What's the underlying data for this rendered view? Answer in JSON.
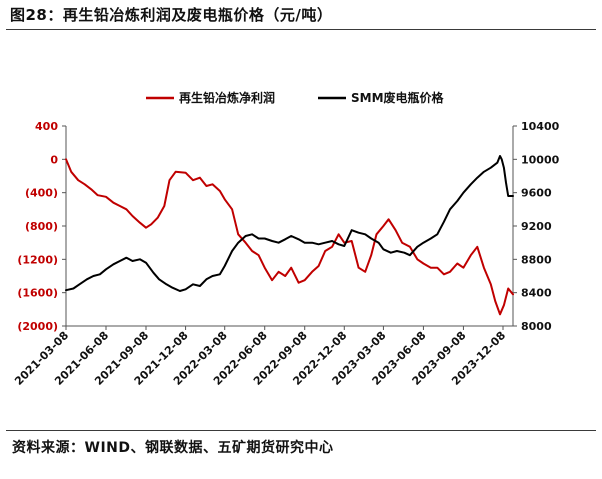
{
  "figure": {
    "title": "图28：再生铅冶炼利润及废电瓶价格（元/吨）",
    "source": "资料来源：WIND、钢联数据、五矿期货研究中心"
  },
  "chart_data": {
    "type": "line",
    "title": "",
    "xlabel": "",
    "ylabel_left": "",
    "ylabel_right": "",
    "x_ticks": [
      "2021-03-08",
      "2021-06-08",
      "2021-09-08",
      "2021-12-08",
      "2022-03-08",
      "2022-06-08",
      "2022-09-08",
      "2022-12-08",
      "2023-03-08",
      "2023-06-08",
      "2023-09-08",
      "2023-12-08"
    ],
    "x_range": [
      "2021-03-08",
      "2023-12-31"
    ],
    "y_left": {
      "min": -2000,
      "max": 400,
      "ticks": [
        400,
        0,
        -400,
        -800,
        -1200,
        -1600,
        -2000
      ],
      "tick_labels": [
        "400",
        "0",
        "(400)",
        "(800)",
        "(1200)",
        "(1600)",
        "(2000)"
      ],
      "color": "#c00000"
    },
    "y_right": {
      "min": 8000,
      "max": 10400,
      "ticks": [
        10400,
        10000,
        9600,
        9200,
        8800,
        8400,
        8000
      ],
      "tick_labels": [
        "10400",
        "10000",
        "9600",
        "9200",
        "8800",
        "8400",
        "8000"
      ]
    },
    "legend": {
      "position": "top-center"
    },
    "grid": false,
    "series": [
      {
        "name": "再生铅冶炼净利润",
        "axis": "left",
        "color": "#c00000",
        "points": [
          [
            "2021-03-08",
            0
          ],
          [
            "2021-03-20",
            -150
          ],
          [
            "2021-04-05",
            -250
          ],
          [
            "2021-04-20",
            -300
          ],
          [
            "2021-05-05",
            -360
          ],
          [
            "2021-05-20",
            -430
          ],
          [
            "2021-06-08",
            -450
          ],
          [
            "2021-06-25",
            -520
          ],
          [
            "2021-07-10",
            -560
          ],
          [
            "2021-07-25",
            -600
          ],
          [
            "2021-08-08",
            -680
          ],
          [
            "2021-08-25",
            -760
          ],
          [
            "2021-09-08",
            -820
          ],
          [
            "2021-09-20",
            -780
          ],
          [
            "2021-10-05",
            -700
          ],
          [
            "2021-10-20",
            -560
          ],
          [
            "2021-11-01",
            -250
          ],
          [
            "2021-11-15",
            -150
          ],
          [
            "2021-12-08",
            -160
          ],
          [
            "2021-12-25",
            -250
          ],
          [
            "2022-01-10",
            -220
          ],
          [
            "2022-01-25",
            -320
          ],
          [
            "2022-02-08",
            -300
          ],
          [
            "2022-02-25",
            -380
          ],
          [
            "2022-03-08",
            -480
          ],
          [
            "2022-03-25",
            -600
          ],
          [
            "2022-04-08",
            -900
          ],
          [
            "2022-04-25",
            -1000
          ],
          [
            "2022-05-10",
            -1100
          ],
          [
            "2022-05-25",
            -1150
          ],
          [
            "2022-06-08",
            -1300
          ],
          [
            "2022-06-25",
            -1450
          ],
          [
            "2022-07-10",
            -1350
          ],
          [
            "2022-07-25",
            -1400
          ],
          [
            "2022-08-08",
            -1300
          ],
          [
            "2022-08-25",
            -1480
          ],
          [
            "2022-09-08",
            -1450
          ],
          [
            "2022-09-25",
            -1350
          ],
          [
            "2022-10-10",
            -1280
          ],
          [
            "2022-10-25",
            -1100
          ],
          [
            "2022-11-10",
            -1050
          ],
          [
            "2022-11-25",
            -900
          ],
          [
            "2022-12-08",
            -1000
          ],
          [
            "2022-12-25",
            -980
          ],
          [
            "2023-01-10",
            -1300
          ],
          [
            "2023-01-25",
            -1350
          ],
          [
            "2023-02-08",
            -1150
          ],
          [
            "2023-02-20",
            -900
          ],
          [
            "2023-03-08",
            -800
          ],
          [
            "2023-03-20",
            -720
          ],
          [
            "2023-04-05",
            -850
          ],
          [
            "2023-04-20",
            -1000
          ],
          [
            "2023-05-08",
            -1050
          ],
          [
            "2023-05-25",
            -1200
          ],
          [
            "2023-06-08",
            -1250
          ],
          [
            "2023-06-25",
            -1300
          ],
          [
            "2023-07-10",
            -1300
          ],
          [
            "2023-07-25",
            -1380
          ],
          [
            "2023-08-08",
            -1350
          ],
          [
            "2023-08-25",
            -1250
          ],
          [
            "2023-09-08",
            -1300
          ],
          [
            "2023-09-25",
            -1150
          ],
          [
            "2023-10-10",
            -1050
          ],
          [
            "2023-10-25",
            -1300
          ],
          [
            "2023-11-10",
            -1500
          ],
          [
            "2023-11-20",
            -1700
          ],
          [
            "2023-12-01",
            -1860
          ],
          [
            "2023-12-10",
            -1750
          ],
          [
            "2023-12-20",
            -1550
          ],
          [
            "2023-12-31",
            -1620
          ]
        ]
      },
      {
        "name": "SMM废电瓶价格",
        "axis": "right",
        "color": "#000000",
        "points": [
          [
            "2021-03-08",
            8430
          ],
          [
            "2021-03-25",
            8450
          ],
          [
            "2021-04-08",
            8500
          ],
          [
            "2021-04-25",
            8560
          ],
          [
            "2021-05-10",
            8600
          ],
          [
            "2021-05-25",
            8620
          ],
          [
            "2021-06-08",
            8680
          ],
          [
            "2021-06-25",
            8740
          ],
          [
            "2021-07-10",
            8780
          ],
          [
            "2021-07-25",
            8820
          ],
          [
            "2021-08-08",
            8780
          ],
          [
            "2021-08-25",
            8800
          ],
          [
            "2021-09-08",
            8760
          ],
          [
            "2021-09-25",
            8640
          ],
          [
            "2021-10-08",
            8560
          ],
          [
            "2021-10-25",
            8500
          ],
          [
            "2021-11-08",
            8460
          ],
          [
            "2021-11-25",
            8420
          ],
          [
            "2021-12-08",
            8440
          ],
          [
            "2021-12-25",
            8500
          ],
          [
            "2022-01-10",
            8480
          ],
          [
            "2022-01-25",
            8560
          ],
          [
            "2022-02-08",
            8600
          ],
          [
            "2022-02-25",
            8620
          ],
          [
            "2022-03-08",
            8720
          ],
          [
            "2022-03-25",
            8900
          ],
          [
            "2022-04-08",
            9000
          ],
          [
            "2022-04-25",
            9080
          ],
          [
            "2022-05-10",
            9100
          ],
          [
            "2022-05-25",
            9050
          ],
          [
            "2022-06-08",
            9050
          ],
          [
            "2022-06-25",
            9020
          ],
          [
            "2022-07-10",
            9000
          ],
          [
            "2022-07-25",
            9040
          ],
          [
            "2022-08-08",
            9080
          ],
          [
            "2022-08-25",
            9040
          ],
          [
            "2022-09-08",
            9000
          ],
          [
            "2022-09-25",
            9000
          ],
          [
            "2022-10-10",
            8980
          ],
          [
            "2022-10-25",
            9000
          ],
          [
            "2022-11-10",
            9020
          ],
          [
            "2022-11-25",
            8980
          ],
          [
            "2022-12-08",
            8960
          ],
          [
            "2022-12-25",
            9150
          ],
          [
            "2023-01-10",
            9120
          ],
          [
            "2023-01-25",
            9100
          ],
          [
            "2023-02-08",
            9050
          ],
          [
            "2023-02-25",
            9000
          ],
          [
            "2023-03-08",
            8920
          ],
          [
            "2023-03-25",
            8880
          ],
          [
            "2023-04-08",
            8900
          ],
          [
            "2023-04-25",
            8880
          ],
          [
            "2023-05-08",
            8850
          ],
          [
            "2023-05-25",
            8950
          ],
          [
            "2023-06-08",
            9000
          ],
          [
            "2023-06-25",
            9050
          ],
          [
            "2023-07-10",
            9100
          ],
          [
            "2023-07-25",
            9250
          ],
          [
            "2023-08-08",
            9400
          ],
          [
            "2023-08-25",
            9500
          ],
          [
            "2023-09-08",
            9600
          ],
          [
            "2023-09-25",
            9700
          ],
          [
            "2023-10-10",
            9780
          ],
          [
            "2023-10-25",
            9850
          ],
          [
            "2023-11-10",
            9900
          ],
          [
            "2023-11-25",
            9960
          ],
          [
            "2023-12-01",
            10040
          ],
          [
            "2023-12-05",
            10000
          ],
          [
            "2023-12-10",
            9900
          ],
          [
            "2023-12-15",
            9720
          ],
          [
            "2023-12-20",
            9560
          ],
          [
            "2023-12-31",
            9560
          ]
        ]
      }
    ]
  }
}
